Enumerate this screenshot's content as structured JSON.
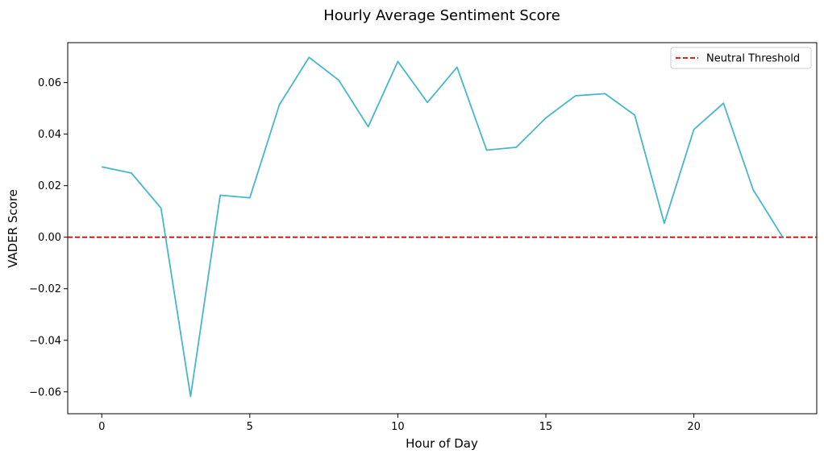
{
  "chart_data": {
    "type": "line",
    "title": "Hourly Average Sentiment Score",
    "xlabel": "Hour of Day",
    "ylabel": "VADER Score",
    "xlim": [
      -1.15,
      24.15
    ],
    "ylim": [
      -0.0685,
      0.0755
    ],
    "xticks": [
      0,
      5,
      10,
      15,
      20
    ],
    "xtick_labels": [
      "0",
      "5",
      "10",
      "15",
      "20"
    ],
    "yticks": [
      -0.06,
      -0.04,
      -0.02,
      0.0,
      0.02,
      0.04,
      0.06
    ],
    "ytick_labels": [
      "−0.06",
      "−0.04",
      "−0.02",
      "0.00",
      "0.02",
      "0.04",
      "0.06"
    ],
    "grid": false,
    "legend_position": "top-right",
    "series": [
      {
        "color": "#45b7cd",
        "x": [
          0,
          1,
          2,
          3,
          4,
          5,
          6,
          7,
          8,
          9,
          10,
          11,
          12,
          13,
          14,
          15,
          16,
          17,
          18,
          19,
          20,
          21,
          22,
          23
        ],
        "y": [
          0.0273,
          0.0249,
          0.0113,
          -0.0618,
          0.0163,
          0.0153,
          0.0514,
          0.0698,
          0.061,
          0.0429,
          0.0682,
          0.0523,
          0.066,
          0.0338,
          0.0349,
          0.0463,
          0.0549,
          0.0557,
          0.0474,
          0.0054,
          0.0418,
          0.052,
          0.0185,
          0.0
        ]
      }
    ],
    "reference_lines": [
      {
        "name": "Neutral Threshold",
        "y": 0.0,
        "color": "#e00000",
        "style": "dashed"
      }
    ]
  }
}
